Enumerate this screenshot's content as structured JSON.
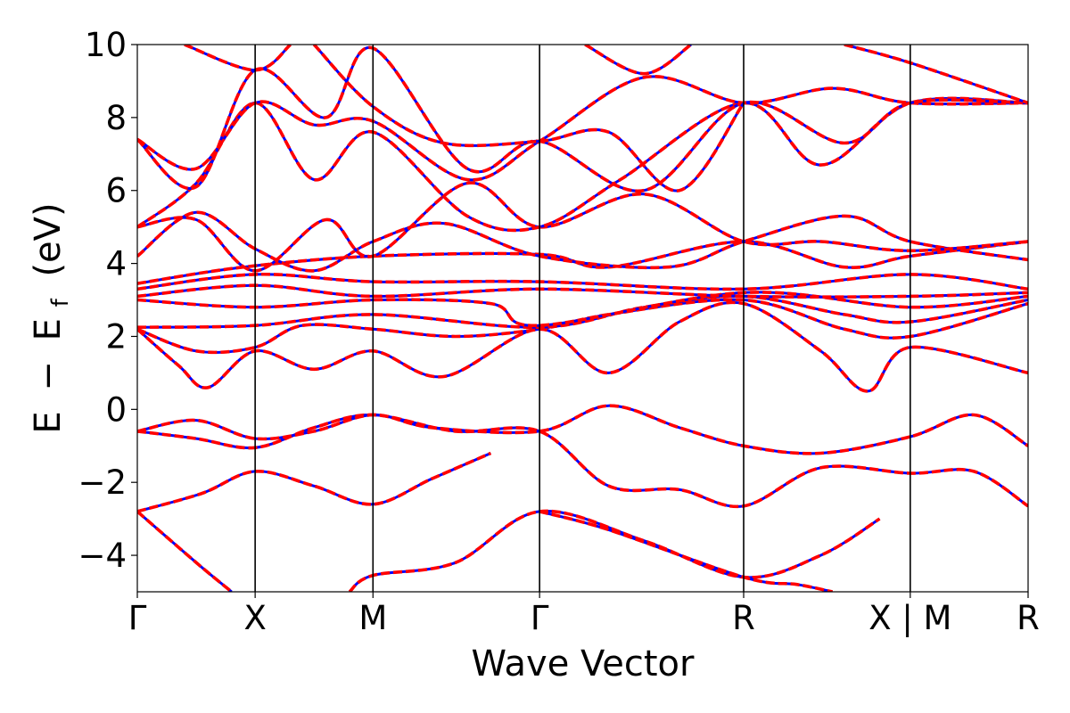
{
  "chart_data": {
    "type": "line",
    "title": "",
    "xlabel": "Wave Vector",
    "ylabel_parts": [
      "E",
      "−",
      "E",
      "f",
      "(eV)"
    ],
    "ylim": [
      -5,
      10
    ],
    "yticks": [
      10,
      8,
      6,
      4,
      2,
      0,
      -2,
      -4
    ],
    "ytick_labels": [
      "10",
      "8",
      "6",
      "4",
      "2",
      "0",
      "−2",
      "−4"
    ],
    "kpath": {
      "positions": [
        0,
        1,
        2,
        3.414,
        5.146,
        6.56,
        7.56
      ],
      "labels": [
        "Γ",
        "X",
        "M",
        "Γ",
        "R",
        "X | M",
        "R"
      ],
      "vlines": [
        1,
        2,
        3.414,
        5.146,
        6.56
      ]
    },
    "colors": {
      "band_solid": "#0000ff",
      "band_dashed": "#ff0000",
      "axis": "#000000"
    },
    "series": [
      {
        "values": [
          [
            0,
            -2.8
          ],
          [
            0.5,
            -4.2
          ],
          [
            0.8,
            -5.0
          ]
        ]
      },
      {
        "values": [
          [
            0,
            -2.8
          ],
          [
            0.55,
            -2.3
          ],
          [
            1,
            -1.7
          ],
          [
            1.5,
            -2.1
          ],
          [
            2,
            -2.6
          ],
          [
            2.5,
            -1.9
          ],
          [
            3,
            -1.2
          ]
        ]
      },
      {
        "values": [
          [
            0,
            -0.6
          ],
          [
            0.5,
            -0.8
          ],
          [
            1,
            -1.05
          ],
          [
            1.5,
            -0.5
          ],
          [
            2,
            -0.15
          ],
          [
            2.7,
            -0.6
          ],
          [
            3.414,
            -0.6
          ],
          [
            4,
            -2.1
          ],
          [
            4.6,
            -2.2
          ],
          [
            5.146,
            -2.65
          ],
          [
            5.8,
            -1.6
          ],
          [
            6.56,
            -1.75
          ],
          [
            7.1,
            -1.7
          ],
          [
            7.56,
            -2.65
          ]
        ]
      },
      {
        "values": [
          [
            0,
            -0.6
          ],
          [
            0.5,
            -0.3
          ],
          [
            1,
            -0.8
          ],
          [
            1.5,
            -0.6
          ],
          [
            2,
            -0.15
          ],
          [
            2.5,
            -0.5
          ],
          [
            3.414,
            -0.6
          ],
          [
            4,
            0.1
          ],
          [
            4.6,
            -0.5
          ],
          [
            5.146,
            -1.0
          ],
          [
            5.8,
            -1.2
          ],
          [
            6.56,
            -0.75
          ],
          [
            7.1,
            -0.15
          ],
          [
            7.56,
            -1.0
          ]
        ]
      },
      {
        "values": [
          [
            1.8,
            -5.0
          ],
          [
            2,
            -4.55
          ],
          [
            2.7,
            -4.2
          ],
          [
            3.414,
            -2.8
          ],
          [
            4.3,
            -3.6
          ],
          [
            5.146,
            -4.6
          ],
          [
            5.8,
            -4.0
          ],
          [
            6.3,
            -3.0
          ]
        ]
      },
      {
        "values": [
          [
            3.414,
            -2.8
          ],
          [
            4,
            -3.3
          ],
          [
            5.146,
            -4.6
          ],
          [
            5.6,
            -4.8
          ],
          [
            5.9,
            -5.0
          ]
        ]
      },
      {
        "values": [
          [
            0,
            2.2
          ],
          [
            0.35,
            1.2
          ],
          [
            0.6,
            0.6
          ],
          [
            1,
            1.6
          ],
          [
            1.5,
            1.1
          ],
          [
            2,
            1.6
          ],
          [
            2.6,
            0.9
          ],
          [
            3.414,
            2.2
          ],
          [
            4,
            1.0
          ],
          [
            4.6,
            2.4
          ],
          [
            5.146,
            2.9
          ],
          [
            5.8,
            1.6
          ],
          [
            6.2,
            0.5
          ],
          [
            6.56,
            1.7
          ],
          [
            7.56,
            1.0
          ]
        ]
      },
      {
        "values": [
          [
            0,
            2.2
          ],
          [
            0.5,
            1.6
          ],
          [
            1,
            1.7
          ],
          [
            1.4,
            2.3
          ],
          [
            2,
            2.2
          ],
          [
            2.7,
            2.0
          ],
          [
            3.414,
            2.2
          ],
          [
            4,
            2.6
          ],
          [
            5.146,
            3.0
          ],
          [
            6,
            2.2
          ],
          [
            6.56,
            2.0
          ],
          [
            7.56,
            2.9
          ]
        ]
      },
      {
        "values": [
          [
            0,
            2.25
          ],
          [
            1,
            2.3
          ],
          [
            2,
            2.6
          ],
          [
            3.414,
            2.25
          ],
          [
            4.3,
            2.8
          ],
          [
            5.146,
            3.1
          ],
          [
            6,
            2.6
          ],
          [
            6.56,
            2.4
          ],
          [
            7.56,
            3.0
          ]
        ]
      },
      {
        "values": [
          [
            0,
            3.0
          ],
          [
            1,
            2.8
          ],
          [
            2,
            3.0
          ],
          [
            3,
            2.9
          ],
          [
            3.414,
            2.3
          ],
          [
            5.146,
            3.2
          ],
          [
            6.56,
            2.8
          ],
          [
            7.56,
            3.1
          ]
        ]
      },
      {
        "values": [
          [
            0,
            3.1
          ],
          [
            1,
            3.4
          ],
          [
            2,
            3.1
          ],
          [
            3.414,
            3.3
          ],
          [
            5.146,
            3.1
          ],
          [
            6.56,
            3.1
          ],
          [
            7.56,
            3.2
          ]
        ]
      },
      {
        "values": [
          [
            0,
            3.3
          ],
          [
            1,
            3.7
          ],
          [
            2,
            3.5
          ],
          [
            3.414,
            3.5
          ],
          [
            5.146,
            3.3
          ],
          [
            6.56,
            3.7
          ],
          [
            7.56,
            3.3
          ]
        ]
      },
      {
        "values": [
          [
            0,
            3.45
          ],
          [
            0.9,
            3.9
          ],
          [
            2,
            4.2
          ],
          [
            3.414,
            4.25
          ],
          [
            4,
            3.9
          ],
          [
            5.146,
            4.6
          ],
          [
            6,
            3.9
          ],
          [
            6.56,
            4.2
          ],
          [
            7.56,
            4.6
          ]
        ]
      },
      {
        "values": [
          [
            0,
            4.2
          ],
          [
            0.5,
            5.4
          ],
          [
            1,
            4.4
          ],
          [
            1.5,
            3.8
          ],
          [
            2,
            4.6
          ],
          [
            2.6,
            5.1
          ],
          [
            3.414,
            4.2
          ],
          [
            4.5,
            3.9
          ],
          [
            5.146,
            4.6
          ],
          [
            6,
            5.3
          ],
          [
            6.56,
            4.6
          ],
          [
            7.56,
            4.1
          ]
        ]
      },
      {
        "values": [
          [
            0,
            5.0
          ],
          [
            0.5,
            5.2
          ],
          [
            1,
            3.8
          ],
          [
            1.6,
            5.2
          ],
          [
            2,
            4.2
          ],
          [
            2.8,
            6.2
          ],
          [
            3.414,
            5.0
          ],
          [
            4.3,
            5.9
          ],
          [
            5.146,
            4.6
          ],
          [
            5.8,
            4.6
          ],
          [
            6.56,
            4.35
          ],
          [
            7.56,
            4.6
          ]
        ]
      },
      {
        "values": [
          [
            0,
            5.0
          ],
          [
            0.5,
            6.2
          ],
          [
            1,
            8.4
          ],
          [
            1.5,
            6.3
          ],
          [
            2,
            7.6
          ],
          [
            2.8,
            5.3
          ],
          [
            3.414,
            5.0
          ],
          [
            4.1,
            6.3
          ],
          [
            5.146,
            8.4
          ],
          [
            5.8,
            6.7
          ],
          [
            6.56,
            8.4
          ],
          [
            7.56,
            8.4
          ]
        ]
      },
      {
        "values": [
          [
            0,
            7.4
          ],
          [
            0.5,
            6.6
          ],
          [
            1,
            8.4
          ],
          [
            1.5,
            7.8
          ],
          [
            2,
            7.9
          ],
          [
            2.8,
            6.3
          ],
          [
            3.414,
            7.35
          ],
          [
            4.3,
            9.1
          ],
          [
            5.146,
            8.4
          ],
          [
            5.9,
            8.8
          ],
          [
            6.56,
            8.4
          ],
          [
            7.56,
            8.4
          ]
        ]
      },
      {
        "values": [
          [
            0,
            7.4
          ],
          [
            0.5,
            6.1
          ],
          [
            1,
            9.3
          ],
          [
            1.6,
            8.0
          ],
          [
            2,
            9.9
          ],
          [
            2.8,
            6.6
          ],
          [
            3.414,
            7.35
          ],
          [
            4.3,
            6.0
          ],
          [
            5.146,
            8.4
          ],
          [
            6,
            7.3
          ],
          [
            6.56,
            8.4
          ],
          [
            7.56,
            8.4
          ]
        ]
      },
      {
        "values": [
          [
            0.4,
            10.0
          ],
          [
            1,
            9.3
          ],
          [
            1.3,
            10.0
          ]
        ]
      },
      {
        "values": [
          [
            1.5,
            10.0
          ],
          [
            2,
            8.3
          ],
          [
            2.6,
            7.3
          ],
          [
            3.414,
            7.35
          ],
          [
            4,
            7.6
          ],
          [
            4.6,
            6.0
          ],
          [
            5.146,
            8.4
          ]
        ]
      },
      {
        "values": [
          [
            3.8,
            10.0
          ],
          [
            4.3,
            9.2
          ],
          [
            4.7,
            10.0
          ]
        ]
      },
      {
        "values": [
          [
            6.0,
            10.0
          ],
          [
            6.56,
            9.5
          ],
          [
            7.56,
            8.4
          ]
        ]
      }
    ]
  }
}
